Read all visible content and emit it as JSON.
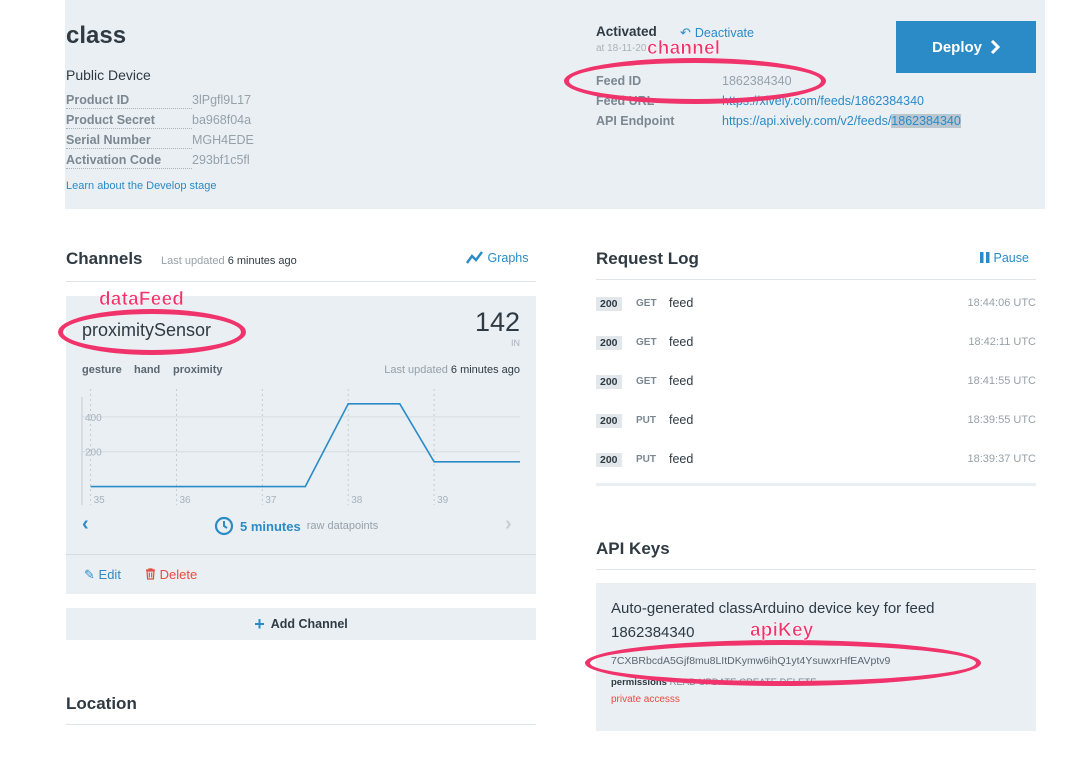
{
  "device": {
    "title": "class",
    "subtitle": "Public Device",
    "fields": [
      {
        "key": "Product ID",
        "value": "3lPgfl9L17"
      },
      {
        "key": "Product Secret",
        "value": "ba968f04a"
      },
      {
        "key": "Serial Number",
        "value": "MGH4EDE"
      },
      {
        "key": "Activation Code",
        "value": "293bf1c5fl"
      }
    ],
    "learn_link": "Learn about the Develop stage"
  },
  "activation": {
    "status": "Activated",
    "deactivate_label": "Deactivate",
    "date": "at 18-11-20"
  },
  "feed": {
    "id_label": "Feed ID",
    "id_value": "1862384340",
    "url_label": "Feed URL",
    "url_value": "https://xively.com/feeds/1862384340",
    "endpoint_label": "API Endpoint",
    "endpoint_prefix": "https://api.xively.com/v2/feeds/",
    "endpoint_id": "1862384340"
  },
  "deploy": {
    "label": "Deploy"
  },
  "channels": {
    "title": "Channels",
    "last_updated_prefix": "Last updated",
    "last_updated_value": "6 minutes ago",
    "graphs_label": "Graphs",
    "channel": {
      "name": "proximitySensor",
      "value": "142",
      "unit": "IN",
      "tags": [
        "gesture",
        "hand",
        "proximity"
      ],
      "updated_prefix": "Last updated",
      "updated_value": "6 minutes ago"
    },
    "time_range": "5 minutes",
    "time_range_sub": "raw datapoints",
    "edit_label": "Edit",
    "delete_label": "Delete",
    "add_channel_label": "Add Channel"
  },
  "chart_data": {
    "type": "line",
    "x_ticks": [
      "35",
      "36",
      "37",
      "38",
      "39"
    ],
    "y_ticks": [
      200,
      400
    ],
    "series": [
      {
        "values": [
          {
            "x": 35,
            "y": 0
          },
          {
            "x": 37.5,
            "y": 0
          },
          {
            "x": 38,
            "y": 475
          },
          {
            "x": 38.6,
            "y": 475
          },
          {
            "x": 39,
            "y": 142
          },
          {
            "x": 40,
            "y": 142
          }
        ]
      }
    ],
    "xlim": [
      34.9,
      40
    ],
    "ylim": [
      -60,
      560
    ],
    "color": "#2a8bc7"
  },
  "request_log": {
    "title": "Request Log",
    "pause_label": "Pause",
    "rows": [
      {
        "status": "200",
        "method": "GET",
        "path": "feed",
        "time": "18:44:06 UTC"
      },
      {
        "status": "200",
        "method": "GET",
        "path": "feed",
        "time": "18:42:11 UTC"
      },
      {
        "status": "200",
        "method": "GET",
        "path": "feed",
        "time": "18:41:55 UTC"
      },
      {
        "status": "200",
        "method": "PUT",
        "path": "feed",
        "time": "18:39:55 UTC"
      },
      {
        "status": "200",
        "method": "PUT",
        "path": "feed",
        "time": "18:39:37 UTC"
      }
    ]
  },
  "api_keys": {
    "title": "API Keys",
    "description": "Auto-generated classArduino device key for feed 1862384340",
    "key": "7CXBRbcdA5Gjf8mu8LItDKymw6ihQ1yt4YsuwxrHfEAVptv9",
    "permissions_label": "permissions",
    "permissions_value": "READ UPDATE CREATE DELETE",
    "private_label": "private accesss"
  },
  "location": {
    "title": "Location"
  },
  "annotations": {
    "channel": "channel",
    "data_feed": "dataFeed",
    "api_key": "apiKey"
  },
  "colors": {
    "accent": "#2a8bc7",
    "annotation": "#f0336b",
    "danger": "#e74c3c",
    "panel": "#eaeff3"
  }
}
